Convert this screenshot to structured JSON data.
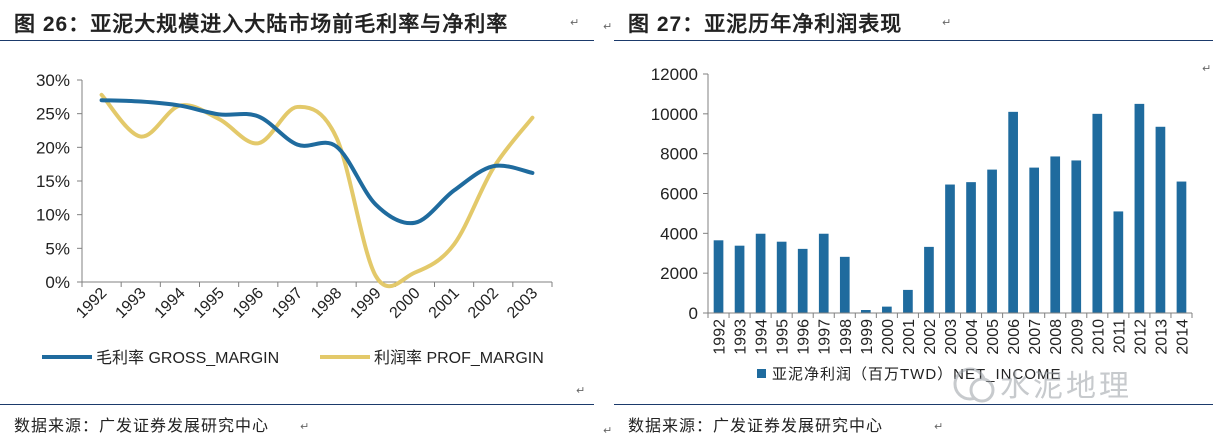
{
  "left": {
    "title_prefix": "图 26",
    "title_sep": "：",
    "title_text": "亚泥大规模进入大陆市场前毛利率与净利率",
    "source": "数据来源：广发证券发展研究中心",
    "colors": {
      "gross": "#1f6b9e",
      "prof": "#e3c96a",
      "axis": "#808080"
    },
    "chart_data": {
      "type": "line",
      "x": [
        "1992",
        "1993",
        "1994",
        "1995",
        "1996",
        "1997",
        "1998",
        "1999",
        "2000",
        "2001",
        "2002",
        "2003"
      ],
      "series": [
        {
          "name": "毛利率 GROSS_MARGIN",
          "values": [
            27,
            26.8,
            26.2,
            24.9,
            24.6,
            20.4,
            20.1,
            11.5,
            8.8,
            13.6,
            17.2,
            16.2
          ]
        },
        {
          "name": "利润率 PROF_MARGIN",
          "values": [
            27.8,
            21.6,
            26.2,
            24.2,
            20.6,
            26,
            21.4,
            0.9,
            1.4,
            5.6,
            16.9,
            24.4
          ]
        }
      ],
      "ylim": [
        0,
        30
      ],
      "yticks": [
        "0%",
        "5%",
        "10%",
        "15%",
        "20%",
        "25%",
        "30%"
      ],
      "legend": "bottom"
    }
  },
  "right": {
    "title_prefix": "图 27",
    "title_sep": "：",
    "title_text": "亚泥历年净利润表现",
    "source": "数据来源：广发证券发展研究中心",
    "colors": {
      "bar": "#1f6b9e",
      "axis": "#808080"
    },
    "chart_data": {
      "type": "bar",
      "categories": [
        "1992",
        "1993",
        "1994",
        "1995",
        "1996",
        "1997",
        "1998",
        "1999",
        "2000",
        "2001",
        "2002",
        "2003",
        "2004",
        "2005",
        "2006",
        "2007",
        "2008",
        "2009",
        "2010",
        "2011",
        "2012",
        "2013",
        "2014"
      ],
      "series": [
        {
          "name": "亚泥净利润（百万TWD）NET_INCOME",
          "values": [
            3650,
            3380,
            3980,
            3580,
            3220,
            3980,
            2820,
            150,
            320,
            1160,
            3320,
            6450,
            6570,
            7200,
            10100,
            7300,
            7860,
            7660,
            10000,
            5100,
            10500,
            9350,
            6600
          ]
        }
      ],
      "ylim": [
        0,
        12000
      ],
      "yticks": [
        "0",
        "2000",
        "4000",
        "6000",
        "8000",
        "10000",
        "12000"
      ],
      "legend": "bottom"
    }
  },
  "watermark": {
    "text": "水泥地理"
  }
}
